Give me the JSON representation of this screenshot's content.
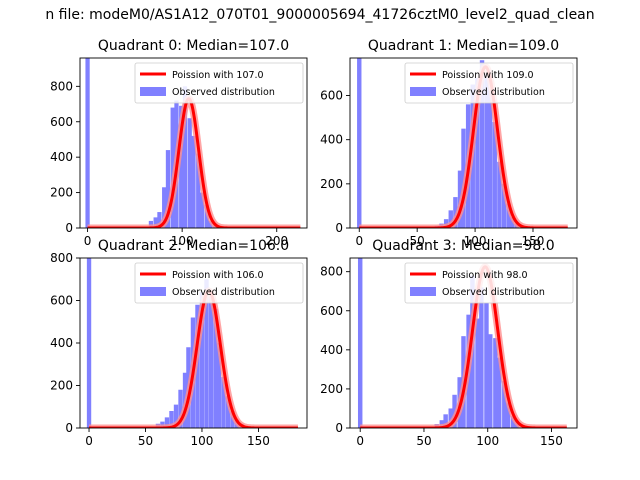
{
  "figure": {
    "suptitle": "n file: modeM0/AS1A12_070T01_9000005694_41726cztM0_level2_quad_clean"
  },
  "chart_data": [
    {
      "type": "bar+line",
      "title": "Quadrant 0: Median=107.0",
      "median": 107.0,
      "legend": [
        "Poission with 107.0",
        "Observed distribution"
      ],
      "legend_position": "top-right",
      "xlim": [
        -8,
        232
      ],
      "ylim": [
        0,
        960
      ],
      "xticks": [
        0,
        100,
        200
      ],
      "yticks": [
        0,
        200,
        400,
        600,
        800
      ],
      "bin_width": 4.5,
      "spike": {
        "x": 0,
        "count": 960
      },
      "bins": [
        [
          67,
          40
        ],
        [
          72,
          60
        ],
        [
          76,
          90
        ],
        [
          81,
          230
        ],
        [
          85,
          440
        ],
        [
          90,
          680
        ],
        [
          94,
          720
        ],
        [
          99,
          690
        ],
        [
          103,
          800
        ],
        [
          108,
          620
        ],
        [
          112,
          520
        ],
        [
          117,
          420
        ],
        [
          121,
          200
        ],
        [
          126,
          130
        ],
        [
          130,
          40
        ],
        [
          135,
          20
        ]
      ],
      "peak": 730,
      "sigma": 10.4,
      "curve_xrange": [
        0,
        225
      ]
    },
    {
      "type": "bar+line",
      "title": "Quadrant 1: Median=109.0",
      "median": 109.0,
      "legend": [
        "Poission with 109.0",
        "Observed distribution"
      ],
      "legend_position": "top-right",
      "xlim": [
        -8,
        188
      ],
      "ylim": [
        0,
        770
      ],
      "xticks": [
        0,
        50,
        100,
        150
      ],
      "yticks": [
        0,
        200,
        400,
        600
      ],
      "bin_width": 3.8,
      "spike": {
        "x": 0,
        "count": 770
      },
      "bins": [
        [
          67,
          10
        ],
        [
          71,
          20
        ],
        [
          75,
          40
        ],
        [
          79,
          80
        ],
        [
          83,
          140
        ],
        [
          87,
          260
        ],
        [
          90,
          450
        ],
        [
          94,
          560
        ],
        [
          98,
          650
        ],
        [
          102,
          680
        ],
        [
          106,
          760
        ],
        [
          110,
          700
        ],
        [
          113,
          620
        ],
        [
          117,
          480
        ],
        [
          121,
          300
        ],
        [
          125,
          200
        ],
        [
          129,
          110
        ],
        [
          132,
          50
        ],
        [
          136,
          20
        ]
      ],
      "peak": 730,
      "sigma": 10.4,
      "curve_xrange": [
        0,
        180
      ]
    },
    {
      "type": "bar+line",
      "title": "Quadrant 2: Median=106.0",
      "median": 106.0,
      "legend": [
        "Poission with 106.0",
        "Observed distribution"
      ],
      "legend_position": "top-right",
      "xlim": [
        -8,
        193
      ],
      "ylim": [
        0,
        800
      ],
      "xticks": [
        0,
        50,
        100,
        150
      ],
      "yticks": [
        0,
        200,
        400,
        600,
        800
      ],
      "bin_width": 3.85,
      "spike": {
        "x": 0,
        "count": 800
      },
      "bins": [
        [
          61,
          20
        ],
        [
          65,
          30
        ],
        [
          69,
          50
        ],
        [
          73,
          80
        ],
        [
          77,
          110
        ],
        [
          81,
          180
        ],
        [
          85,
          260
        ],
        [
          88,
          380
        ],
        [
          92,
          520
        ],
        [
          96,
          580
        ],
        [
          100,
          640
        ],
        [
          104,
          700
        ],
        [
          108,
          620
        ],
        [
          112,
          560
        ],
        [
          115,
          400
        ],
        [
          119,
          240
        ],
        [
          123,
          150
        ],
        [
          127,
          80
        ],
        [
          131,
          40
        ],
        [
          135,
          20
        ]
      ],
      "peak": 645,
      "sigma": 10.3,
      "curve_xrange": [
        0,
        185
      ]
    },
    {
      "type": "bar+line",
      "title": "Quadrant 3: Median=98.0",
      "median": 98.0,
      "legend": [
        "Poission with 98.0",
        "Observed distribution"
      ],
      "legend_position": "top-right",
      "xlim": [
        -8,
        170
      ],
      "ylim": [
        0,
        870
      ],
      "xticks": [
        0,
        50,
        100,
        150
      ],
      "yticks": [
        0,
        200,
        400,
        600,
        800
      ],
      "bin_width": 3.5,
      "spike": {
        "x": 0,
        "count": 870
      },
      "bins": [
        [
          60,
          20
        ],
        [
          64,
          40
        ],
        [
          67,
          70
        ],
        [
          71,
          100
        ],
        [
          74,
          170
        ],
        [
          78,
          260
        ],
        [
          81,
          470
        ],
        [
          85,
          580
        ],
        [
          88,
          780
        ],
        [
          92,
          560
        ],
        [
          95,
          720
        ],
        [
          99,
          640
        ],
        [
          102,
          480
        ],
        [
          106,
          460
        ],
        [
          109,
          360
        ],
        [
          113,
          240
        ],
        [
          116,
          130
        ],
        [
          120,
          60
        ],
        [
          123,
          30
        ]
      ],
      "peak": 825,
      "sigma": 9.9,
      "curve_xrange": [
        0,
        162
      ]
    }
  ],
  "colors": {
    "bars": "#8080ff",
    "curve": "#ff0000",
    "curve_glow": "#ff9090"
  }
}
